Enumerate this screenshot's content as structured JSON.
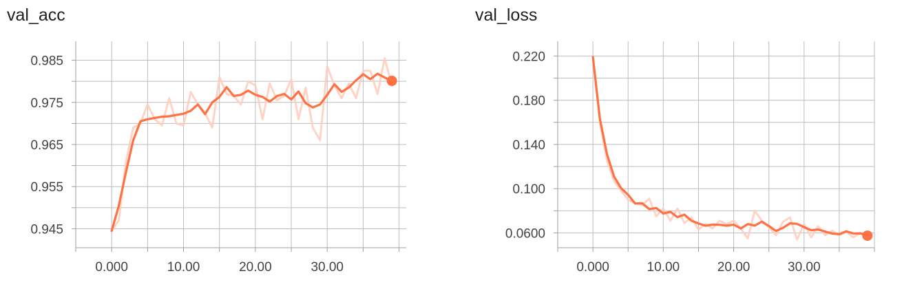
{
  "chart_data": [
    {
      "type": "line",
      "title": "val_acc",
      "xlabel": "",
      "ylabel": "",
      "xlim": [
        -5,
        41
      ],
      "ylim": [
        0.9405,
        0.9895
      ],
      "x_ticks": [
        0,
        10,
        20,
        30
      ],
      "x_tick_labels": [
        "0.000",
        "10.00",
        "20.00",
        "30.00"
      ],
      "y_ticks": [
        0.945,
        0.955,
        0.965,
        0.975,
        0.985
      ],
      "y_tick_labels": [
        "0.945",
        "0.955",
        "0.965",
        "0.975",
        "0.985"
      ],
      "grid": true,
      "color": "#ff7043",
      "raw_color": "#ffccbc",
      "series": [
        {
          "role": "smoothed",
          "x": [
            0,
            1,
            2,
            3,
            4,
            5,
            6,
            7,
            8,
            9,
            10,
            11,
            12,
            13,
            14,
            15,
            16,
            17,
            18,
            19,
            20,
            21,
            22,
            23,
            24,
            25,
            26,
            27,
            28,
            29,
            30,
            31,
            32,
            33,
            34,
            35,
            36,
            37,
            38,
            39
          ],
          "values": [
            0.9445,
            0.9505,
            0.9585,
            0.966,
            0.9705,
            0.971,
            0.9713,
            0.9716,
            0.9717,
            0.972,
            0.9723,
            0.973,
            0.9745,
            0.9722,
            0.975,
            0.9763,
            0.9786,
            0.9765,
            0.9768,
            0.9778,
            0.9768,
            0.9763,
            0.9752,
            0.9765,
            0.977,
            0.9757,
            0.9776,
            0.9748,
            0.9738,
            0.9745,
            0.9768,
            0.9793,
            0.9775,
            0.9785,
            0.9802,
            0.9817,
            0.9805,
            0.9818,
            0.9809,
            0.9801
          ]
        },
        {
          "role": "raw",
          "x": [
            0,
            1,
            2,
            3,
            4,
            5,
            6,
            7,
            8,
            9,
            10,
            11,
            12,
            13,
            14,
            15,
            16,
            17,
            18,
            19,
            20,
            21,
            22,
            23,
            24,
            25,
            26,
            27,
            28,
            29,
            30,
            31,
            32,
            33,
            34,
            35,
            36,
            37,
            38,
            39
          ],
          "values": [
            0.9445,
            0.947,
            0.961,
            0.969,
            0.97,
            0.9745,
            0.971,
            0.9695,
            0.976,
            0.97,
            0.9695,
            0.9775,
            0.9745,
            0.9725,
            0.969,
            0.981,
            0.977,
            0.9765,
            0.9745,
            0.98,
            0.979,
            0.971,
            0.9795,
            0.9755,
            0.9765,
            0.9805,
            0.971,
            0.9785,
            0.969,
            0.966,
            0.9835,
            0.979,
            0.976,
            0.9795,
            0.976,
            0.9825,
            0.9825,
            0.977,
            0.9855,
            0.979
          ]
        }
      ]
    },
    {
      "type": "line",
      "title": "val_loss",
      "xlabel": "",
      "ylabel": "",
      "xlim": [
        -5,
        40
      ],
      "ylim": [
        0.0466,
        0.2333
      ],
      "x_ticks": [
        0,
        10,
        20,
        30
      ],
      "x_tick_labels": [
        "0.000",
        "10.00",
        "20.00",
        "30.00"
      ],
      "y_ticks": [
        0.06,
        0.1,
        0.14,
        0.18,
        0.22
      ],
      "y_tick_labels": [
        "0.0600",
        "0.100",
        "0.140",
        "0.180",
        "0.220"
      ],
      "grid": true,
      "color": "#ff7043",
      "raw_color": "#ffccbc",
      "series": [
        {
          "role": "smoothed",
          "x": [
            0,
            1,
            2,
            3,
            4,
            5,
            6,
            7,
            8,
            9,
            10,
            11,
            12,
            13,
            14,
            15,
            16,
            17,
            18,
            19,
            20,
            21,
            22,
            23,
            24,
            25,
            26,
            27,
            28,
            29,
            30,
            31,
            32,
            33,
            34,
            35,
            36,
            37,
            38,
            39
          ],
          "values": [
            0.219,
            0.163,
            0.131,
            0.111,
            0.1005,
            0.0945,
            0.0866,
            0.0868,
            0.0815,
            0.0825,
            0.0775,
            0.079,
            0.0743,
            0.0765,
            0.071,
            0.0685,
            0.0665,
            0.0675,
            0.0673,
            0.0665,
            0.0675,
            0.064,
            0.068,
            0.0666,
            0.0702,
            0.0662,
            0.0618,
            0.0645,
            0.0686,
            0.0682,
            0.0652,
            0.0625,
            0.063,
            0.0612,
            0.0594,
            0.0588,
            0.0615,
            0.0595,
            0.0596,
            0.0575
          ]
        },
        {
          "role": "raw",
          "x": [
            0,
            1,
            2,
            3,
            4,
            5,
            6,
            7,
            8,
            9,
            10,
            11,
            12,
            13,
            14,
            15,
            16,
            17,
            18,
            19,
            20,
            21,
            22,
            23,
            24,
            25,
            26,
            27,
            28,
            29,
            30,
            31,
            32,
            33,
            34,
            35,
            36,
            37,
            38,
            39
          ],
          "values": [
            0.219,
            0.16,
            0.125,
            0.107,
            0.098,
            0.09,
            0.087,
            0.085,
            0.091,
            0.075,
            0.082,
            0.071,
            0.082,
            0.069,
            0.074,
            0.063,
            0.068,
            0.064,
            0.071,
            0.068,
            0.071,
            0.064,
            0.055,
            0.08,
            0.071,
            0.065,
            0.058,
            0.07,
            0.074,
            0.054,
            0.068,
            0.056,
            0.066,
            0.058,
            0.062,
            0.058,
            0.061,
            0.056,
            0.06,
            0.055
          ]
        }
      ]
    }
  ]
}
